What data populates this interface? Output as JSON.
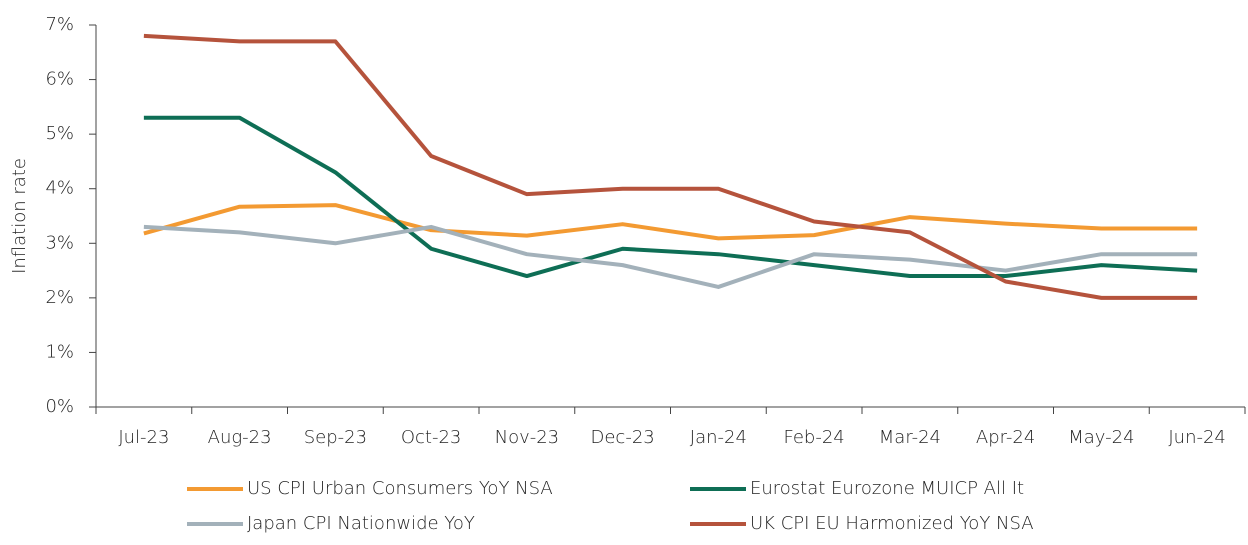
{
  "chart_data": {
    "type": "line",
    "y_label": "Inflation rate",
    "categories": [
      "Jul-23",
      "Aug-23",
      "Sep-23",
      "Oct-23",
      "Nov-23",
      "Dec-23",
      "Jan-24",
      "Feb-24",
      "Mar-24",
      "Apr-24",
      "May-24",
      "Jun-24"
    ],
    "series": [
      {
        "name": "US CPI Urban Consumers YoY NSA",
        "color": "#f39a32",
        "values": [
          3.18,
          3.67,
          3.7,
          3.24,
          3.14,
          3.35,
          3.09,
          3.15,
          3.48,
          3.36,
          3.27,
          3.27
        ]
      },
      {
        "name": "Eurostat Eurozone MUICP All It",
        "color": "#0e6e55",
        "values": [
          5.3,
          5.3,
          4.3,
          2.9,
          2.4,
          2.9,
          2.8,
          2.6,
          2.4,
          2.4,
          2.6,
          2.5
        ]
      },
      {
        "name": "Japan CPI Nationwide YoY",
        "color": "#a3b1ba",
        "values": [
          3.3,
          3.2,
          3.0,
          3.3,
          2.8,
          2.6,
          2.2,
          2.8,
          2.7,
          2.5,
          2.8,
          2.8
        ]
      },
      {
        "name": "UK CPI EU Harmonized YoY NSA",
        "color": "#b5533c",
        "values": [
          6.8,
          6.7,
          6.7,
          4.6,
          3.9,
          4.0,
          4.0,
          3.4,
          3.2,
          2.3,
          2.0,
          2.0
        ]
      }
    ],
    "ylim": [
      0,
      7
    ],
    "yticks": [
      {
        "value": 0,
        "label": "0%"
      },
      {
        "value": 1,
        "label": "1%"
      },
      {
        "value": 2,
        "label": "2%"
      },
      {
        "value": 3,
        "label": "3%"
      },
      {
        "value": 4,
        "label": "4%"
      },
      {
        "value": 5,
        "label": "5%"
      },
      {
        "value": 6,
        "label": "6%"
      },
      {
        "value": 7,
        "label": "7%"
      }
    ],
    "grid": false,
    "legend": "bottom"
  }
}
